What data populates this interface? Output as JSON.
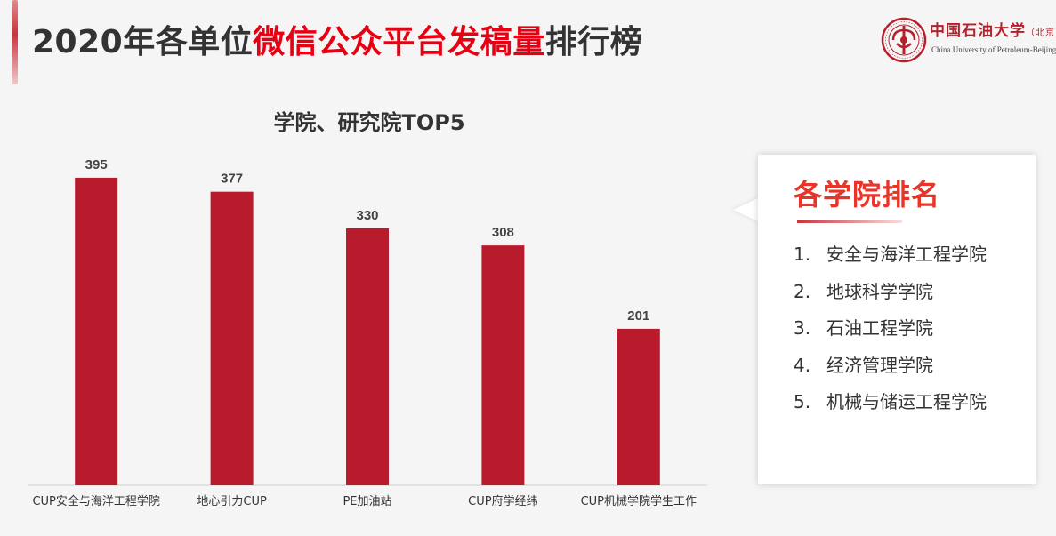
{
  "slide": {
    "title_prefix": "2020年各单位",
    "title_highlight": "微信公众平台发稿量",
    "title_suffix": "排行榜"
  },
  "logo": {
    "name_cn": "中国石油大学",
    "name_cn_suffix": "（北京）",
    "name_en": "China University of Petroleum-Beijing"
  },
  "chart_data": {
    "type": "bar",
    "title": "学院、研究院TOP5",
    "categories": [
      "CUP安全与海洋工程学院",
      "地心引力CUP",
      "PE加油站",
      "CUP府学经纬",
      "CUP机械学院学生工作"
    ],
    "values": [
      395,
      377,
      330,
      308,
      201
    ],
    "data_labels": [
      "395",
      "377",
      "330",
      "308",
      "201"
    ],
    "xlabel": "",
    "ylabel": "",
    "ylim": [
      0,
      420
    ],
    "grid": false,
    "bar_color": "#b81c2c"
  },
  "ranking": {
    "title": "各学院排名",
    "items": [
      {
        "num": "1.",
        "name": "安全与海洋工程学院"
      },
      {
        "num": "2.",
        "name": "地球科学学院"
      },
      {
        "num": "3.",
        "name": "石油工程学院"
      },
      {
        "num": "4.",
        "name": "经济管理学院"
      },
      {
        "num": "5.",
        "name": "机械与储运工程学院"
      }
    ]
  },
  "colors": {
    "accent": "#e60012",
    "bar": "#b81c2c",
    "panel_title": "#e8352a"
  }
}
